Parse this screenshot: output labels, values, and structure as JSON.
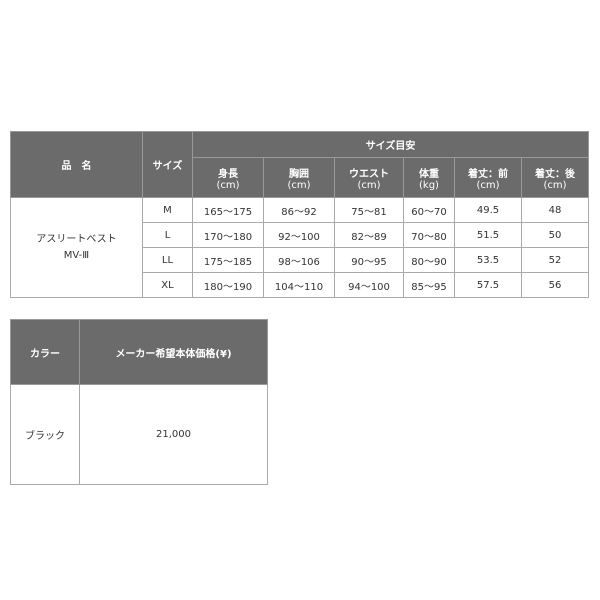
{
  "size_table": {
    "headers": {
      "product": "品　名",
      "size": "サイズ",
      "guide": "サイズ目安"
    },
    "columns": [
      [
        "身長",
        "(cm)"
      ],
      [
        "胸囲",
        "(cm)"
      ],
      [
        "ウエスト",
        "(cm)"
      ],
      [
        "体重",
        "(kg)"
      ],
      [
        "着丈：前",
        "(cm)"
      ],
      [
        "着丈：後",
        "(cm)"
      ]
    ],
    "product_name": "アスリートベスト",
    "product_model": "MV-Ⅲ",
    "rows": [
      [
        "M",
        "165〜175",
        "86〜92",
        "75〜81",
        "60〜70",
        "49.5",
        "48"
      ],
      [
        "L",
        "170〜180",
        "92〜100",
        "82〜89",
        "70〜80",
        "51.5",
        "50"
      ],
      [
        "LL",
        "175〜185",
        "98〜106",
        "90〜95",
        "80〜90",
        "53.5",
        "52"
      ],
      [
        "XL",
        "180〜190",
        "104〜110",
        "94〜100",
        "85〜95",
        "57.5",
        "56"
      ]
    ]
  },
  "price_table": {
    "headers": [
      "カラー",
      "メーカー希望本体価格(¥)"
    ],
    "color": "ブラック",
    "price": "21,000"
  }
}
